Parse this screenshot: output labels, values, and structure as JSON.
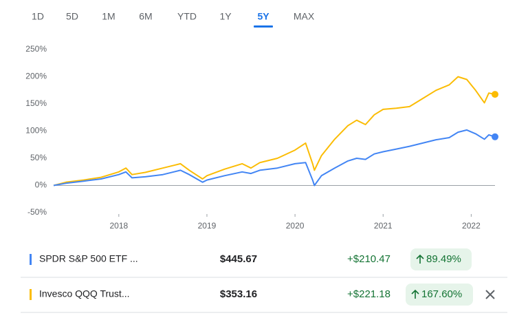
{
  "tabs": [
    "1D",
    "5D",
    "1M",
    "6M",
    "YTD",
    "1Y",
    "5Y",
    "MAX"
  ],
  "active_tab": "5Y",
  "chart_data": {
    "type": "line",
    "x": [
      2017.26,
      2017.4,
      2017.6,
      2017.8,
      2018.0,
      2018.08,
      2018.15,
      2018.3,
      2018.5,
      2018.7,
      2018.8,
      2018.95,
      2019.0,
      2019.2,
      2019.4,
      2019.5,
      2019.6,
      2019.8,
      2020.0,
      2020.12,
      2020.2,
      2020.22,
      2020.3,
      2020.45,
      2020.6,
      2020.7,
      2020.8,
      2020.9,
      2021.0,
      2021.15,
      2021.3,
      2021.45,
      2021.6,
      2021.75,
      2021.85,
      2021.95,
      2022.05,
      2022.15,
      2022.2,
      2022.27
    ],
    "series": [
      {
        "name": "SPDR S&P 500 ETF ...",
        "color": "#4285f4",
        "values": [
          0,
          4,
          8,
          12,
          20,
          25,
          14,
          16,
          20,
          28,
          20,
          6,
          10,
          18,
          25,
          22,
          28,
          32,
          40,
          42,
          10,
          0,
          18,
          32,
          45,
          50,
          48,
          58,
          62,
          67,
          72,
          78,
          84,
          88,
          98,
          102,
          95,
          85,
          93,
          89.49
        ]
      },
      {
        "name": "Invesco QQQ Trust...",
        "color": "#fbbc04",
        "values": [
          0,
          6,
          10,
          15,
          25,
          32,
          20,
          24,
          32,
          40,
          28,
          12,
          18,
          30,
          40,
          32,
          42,
          50,
          65,
          78,
          40,
          28,
          55,
          85,
          110,
          120,
          112,
          130,
          140,
          142,
          145,
          160,
          175,
          185,
          200,
          195,
          175,
          152,
          170,
          167.6
        ]
      }
    ],
    "xlim": [
      2017.26,
      2022.27
    ],
    "xticks": [
      2018,
      2019,
      2020,
      2021,
      2022
    ],
    "ylim": [
      -50,
      250
    ],
    "yticks": [
      {
        "value": -50,
        "label": "-50%"
      },
      {
        "value": 0,
        "label": "0%"
      },
      {
        "value": 50,
        "label": "50%"
      },
      {
        "value": 100,
        "label": "100%"
      },
      {
        "value": 150,
        "label": "150%"
      },
      {
        "value": 200,
        "label": "200%"
      },
      {
        "value": 250,
        "label": "250%"
      }
    ]
  },
  "rows": [
    {
      "price": "$445.67",
      "change": "+$210.47",
      "percent": "89.49%"
    },
    {
      "price": "$353.16",
      "change": "+$221.18",
      "percent": "167.60%"
    }
  ]
}
